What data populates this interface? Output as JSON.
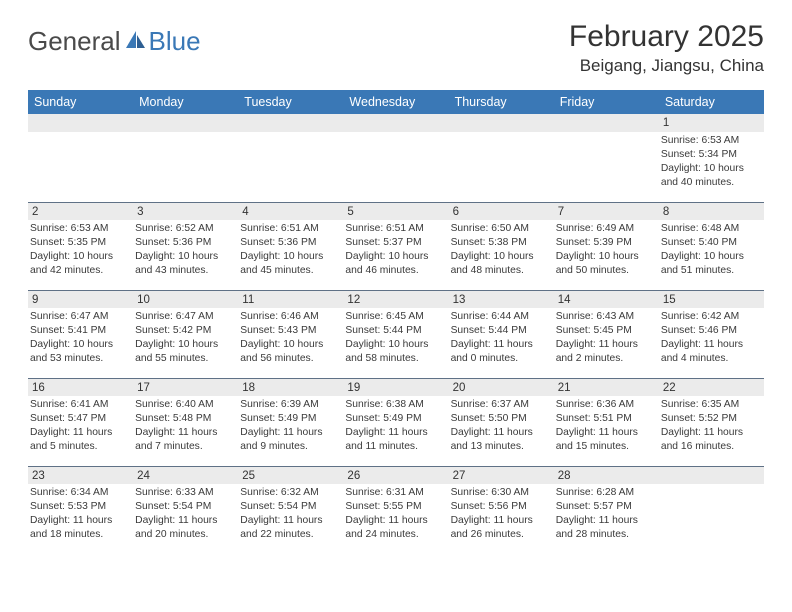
{
  "brand": {
    "text1": "General",
    "text2": "Blue"
  },
  "title": "February 2025",
  "location": "Beigang, Jiangsu, China",
  "colors": {
    "header_bg": "#3a78b6",
    "header_text": "#ffffff",
    "daynum_bg": "#ebebeb",
    "rule": "#5f7186",
    "body_text": "#3a3a3a"
  },
  "dayNames": [
    "Sunday",
    "Monday",
    "Tuesday",
    "Wednesday",
    "Thursday",
    "Friday",
    "Saturday"
  ],
  "weeks": [
    [
      {
        "n": "",
        "sunrise": "",
        "sunset": "",
        "daylight": ""
      },
      {
        "n": "",
        "sunrise": "",
        "sunset": "",
        "daylight": ""
      },
      {
        "n": "",
        "sunrise": "",
        "sunset": "",
        "daylight": ""
      },
      {
        "n": "",
        "sunrise": "",
        "sunset": "",
        "daylight": ""
      },
      {
        "n": "",
        "sunrise": "",
        "sunset": "",
        "daylight": ""
      },
      {
        "n": "",
        "sunrise": "",
        "sunset": "",
        "daylight": ""
      },
      {
        "n": "1",
        "sunrise": "Sunrise: 6:53 AM",
        "sunset": "Sunset: 5:34 PM",
        "daylight": "Daylight: 10 hours and 40 minutes."
      }
    ],
    [
      {
        "n": "2",
        "sunrise": "Sunrise: 6:53 AM",
        "sunset": "Sunset: 5:35 PM",
        "daylight": "Daylight: 10 hours and 42 minutes."
      },
      {
        "n": "3",
        "sunrise": "Sunrise: 6:52 AM",
        "sunset": "Sunset: 5:36 PM",
        "daylight": "Daylight: 10 hours and 43 minutes."
      },
      {
        "n": "4",
        "sunrise": "Sunrise: 6:51 AM",
        "sunset": "Sunset: 5:36 PM",
        "daylight": "Daylight: 10 hours and 45 minutes."
      },
      {
        "n": "5",
        "sunrise": "Sunrise: 6:51 AM",
        "sunset": "Sunset: 5:37 PM",
        "daylight": "Daylight: 10 hours and 46 minutes."
      },
      {
        "n": "6",
        "sunrise": "Sunrise: 6:50 AM",
        "sunset": "Sunset: 5:38 PM",
        "daylight": "Daylight: 10 hours and 48 minutes."
      },
      {
        "n": "7",
        "sunrise": "Sunrise: 6:49 AM",
        "sunset": "Sunset: 5:39 PM",
        "daylight": "Daylight: 10 hours and 50 minutes."
      },
      {
        "n": "8",
        "sunrise": "Sunrise: 6:48 AM",
        "sunset": "Sunset: 5:40 PM",
        "daylight": "Daylight: 10 hours and 51 minutes."
      }
    ],
    [
      {
        "n": "9",
        "sunrise": "Sunrise: 6:47 AM",
        "sunset": "Sunset: 5:41 PM",
        "daylight": "Daylight: 10 hours and 53 minutes."
      },
      {
        "n": "10",
        "sunrise": "Sunrise: 6:47 AM",
        "sunset": "Sunset: 5:42 PM",
        "daylight": "Daylight: 10 hours and 55 minutes."
      },
      {
        "n": "11",
        "sunrise": "Sunrise: 6:46 AM",
        "sunset": "Sunset: 5:43 PM",
        "daylight": "Daylight: 10 hours and 56 minutes."
      },
      {
        "n": "12",
        "sunrise": "Sunrise: 6:45 AM",
        "sunset": "Sunset: 5:44 PM",
        "daylight": "Daylight: 10 hours and 58 minutes."
      },
      {
        "n": "13",
        "sunrise": "Sunrise: 6:44 AM",
        "sunset": "Sunset: 5:44 PM",
        "daylight": "Daylight: 11 hours and 0 minutes."
      },
      {
        "n": "14",
        "sunrise": "Sunrise: 6:43 AM",
        "sunset": "Sunset: 5:45 PM",
        "daylight": "Daylight: 11 hours and 2 minutes."
      },
      {
        "n": "15",
        "sunrise": "Sunrise: 6:42 AM",
        "sunset": "Sunset: 5:46 PM",
        "daylight": "Daylight: 11 hours and 4 minutes."
      }
    ],
    [
      {
        "n": "16",
        "sunrise": "Sunrise: 6:41 AM",
        "sunset": "Sunset: 5:47 PM",
        "daylight": "Daylight: 11 hours and 5 minutes."
      },
      {
        "n": "17",
        "sunrise": "Sunrise: 6:40 AM",
        "sunset": "Sunset: 5:48 PM",
        "daylight": "Daylight: 11 hours and 7 minutes."
      },
      {
        "n": "18",
        "sunrise": "Sunrise: 6:39 AM",
        "sunset": "Sunset: 5:49 PM",
        "daylight": "Daylight: 11 hours and 9 minutes."
      },
      {
        "n": "19",
        "sunrise": "Sunrise: 6:38 AM",
        "sunset": "Sunset: 5:49 PM",
        "daylight": "Daylight: 11 hours and 11 minutes."
      },
      {
        "n": "20",
        "sunrise": "Sunrise: 6:37 AM",
        "sunset": "Sunset: 5:50 PM",
        "daylight": "Daylight: 11 hours and 13 minutes."
      },
      {
        "n": "21",
        "sunrise": "Sunrise: 6:36 AM",
        "sunset": "Sunset: 5:51 PM",
        "daylight": "Daylight: 11 hours and 15 minutes."
      },
      {
        "n": "22",
        "sunrise": "Sunrise: 6:35 AM",
        "sunset": "Sunset: 5:52 PM",
        "daylight": "Daylight: 11 hours and 16 minutes."
      }
    ],
    [
      {
        "n": "23",
        "sunrise": "Sunrise: 6:34 AM",
        "sunset": "Sunset: 5:53 PM",
        "daylight": "Daylight: 11 hours and 18 minutes."
      },
      {
        "n": "24",
        "sunrise": "Sunrise: 6:33 AM",
        "sunset": "Sunset: 5:54 PM",
        "daylight": "Daylight: 11 hours and 20 minutes."
      },
      {
        "n": "25",
        "sunrise": "Sunrise: 6:32 AM",
        "sunset": "Sunset: 5:54 PM",
        "daylight": "Daylight: 11 hours and 22 minutes."
      },
      {
        "n": "26",
        "sunrise": "Sunrise: 6:31 AM",
        "sunset": "Sunset: 5:55 PM",
        "daylight": "Daylight: 11 hours and 24 minutes."
      },
      {
        "n": "27",
        "sunrise": "Sunrise: 6:30 AM",
        "sunset": "Sunset: 5:56 PM",
        "daylight": "Daylight: 11 hours and 26 minutes."
      },
      {
        "n": "28",
        "sunrise": "Sunrise: 6:28 AM",
        "sunset": "Sunset: 5:57 PM",
        "daylight": "Daylight: 11 hours and 28 minutes."
      },
      {
        "n": "",
        "sunrise": "",
        "sunset": "",
        "daylight": ""
      }
    ]
  ]
}
